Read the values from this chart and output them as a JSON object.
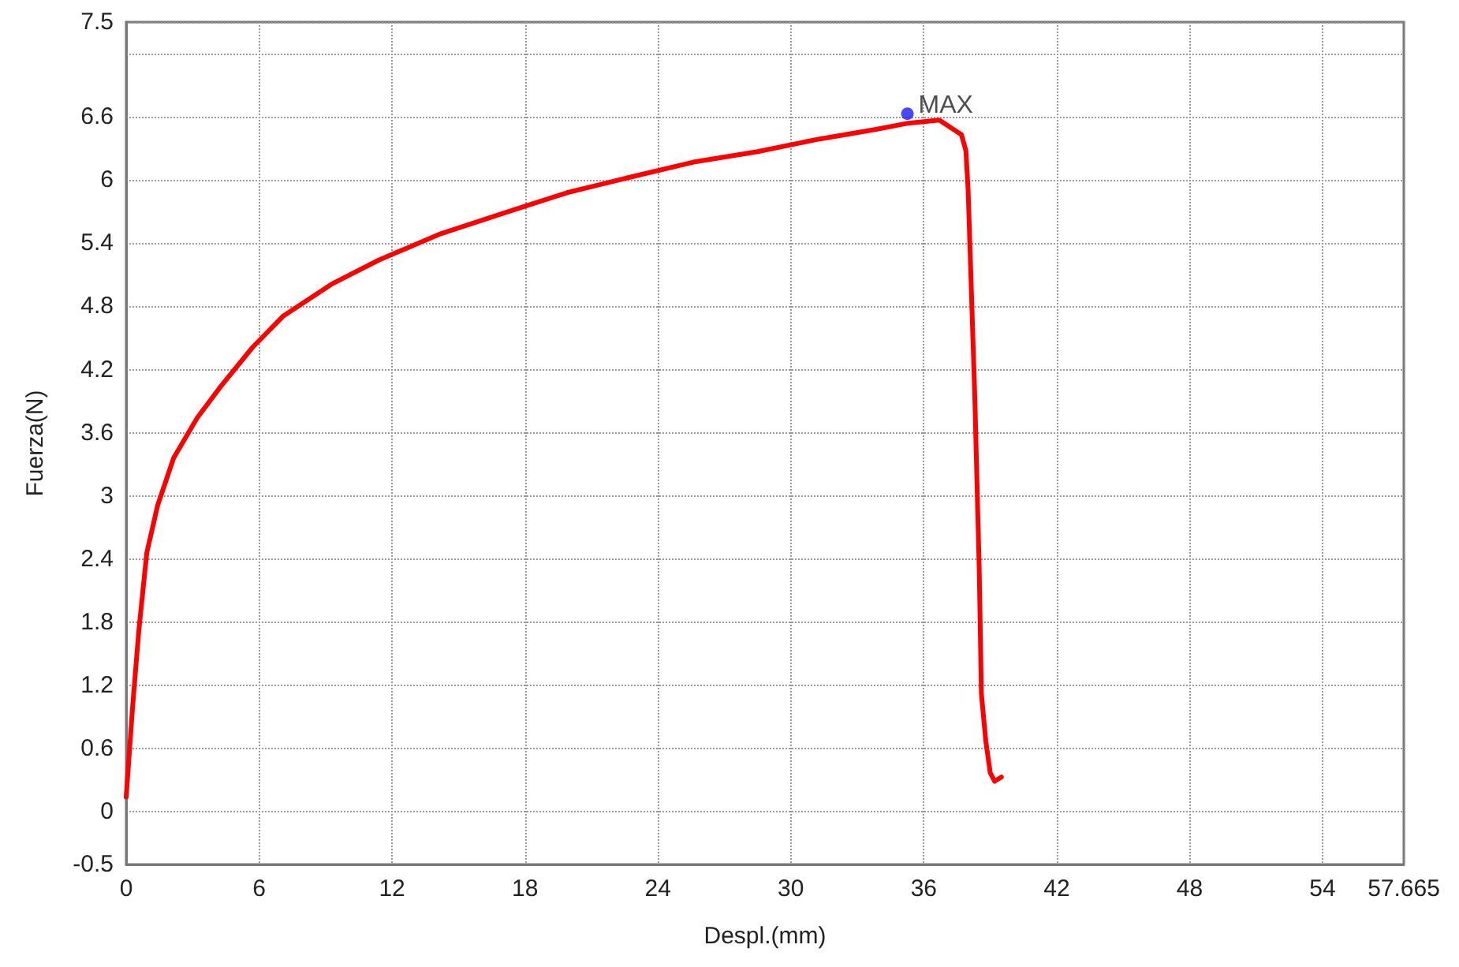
{
  "chart_data": {
    "type": "line",
    "xlabel": "Despl.(mm)",
    "ylabel": "Fuerza(N)",
    "xlim": [
      0,
      57.665
    ],
    "xticks": [
      0,
      6,
      12,
      18,
      24,
      30,
      36,
      42,
      48,
      54,
      57.665
    ],
    "ylim": [
      -0.5,
      7.5
    ],
    "yticks": [
      -0.5,
      0,
      0.6,
      1.2,
      1.8,
      2.4,
      3,
      3.6,
      4.2,
      4.8,
      5.4,
      6,
      6.6,
      {
        "value": 7.2,
        "label": null
      },
      7.5
    ],
    "grid": true,
    "series": [
      {
        "color": "#ff0000",
        "marker": "none",
        "line_style": "solid",
        "x": [
          0,
          0.28,
          0.57,
          0.93,
          1.42,
          2.14,
          3.2,
          4.27,
          5.7,
          7.1,
          9.26,
          11.4,
          14.2,
          17.1,
          19.9,
          22.8,
          25.6,
          28.5,
          31.3,
          33.8,
          35.3,
          36.7,
          37.7,
          37.9,
          38,
          38.3,
          38.5,
          38.6,
          38.8,
          39,
          39.2,
          39.5
        ],
        "values": [
          0.14,
          0.97,
          1.72,
          2.46,
          2.91,
          3.36,
          3.74,
          4.04,
          4.41,
          4.71,
          5.01,
          5.24,
          5.49,
          5.69,
          5.88,
          6.03,
          6.17,
          6.27,
          6.39,
          6.48,
          6.54,
          6.57,
          6.43,
          6.28,
          5.91,
          3.96,
          2.32,
          1.12,
          0.67,
          0.37,
          0.29,
          0.33
        ]
      },
      {
        "type": "scatter",
        "color": "#1a1aff",
        "marker": "circle",
        "x": [
          35.26
        ],
        "values": [
          6.63
        ]
      }
    ],
    "annotations": [
      {
        "text": "MAX",
        "x": 35.26,
        "y": 6.63
      }
    ]
  }
}
